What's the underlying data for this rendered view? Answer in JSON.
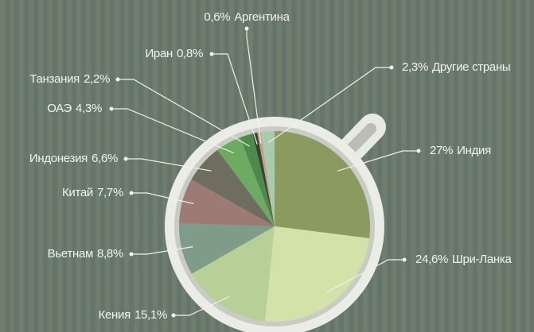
{
  "chart_data": {
    "type": "pie",
    "categories": [
      "Индия",
      "Шри-Ланка",
      "Кения",
      "Вьетнам",
      "Китай",
      "Индонезия",
      "ОАЭ",
      "Танзания",
      "Иран",
      "Аргентина",
      "Другие страны"
    ],
    "values": [
      27,
      24.6,
      15.1,
      8.8,
      7.7,
      6.6,
      4.3,
      2.2,
      0.8,
      0.6,
      2.3
    ],
    "value_labels": [
      "27%",
      "24,6%",
      "15,1%",
      "8,8%",
      "7,7%",
      "6,6%",
      "4,3%",
      "2,2%",
      "0,8%",
      "0,6%",
      "2,3%"
    ],
    "colors": [
      "#8b9a5e",
      "#d3e2a9",
      "#b9cf98",
      "#7f9c88",
      "#9b7b73",
      "#6e6d5f",
      "#6dab62",
      "#4e8a4c",
      "#2f4a30",
      "#c99b90",
      "#a9cbab"
    ]
  }
}
